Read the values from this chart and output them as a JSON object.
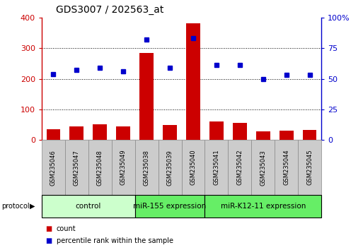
{
  "title": "GDS3007 / 202563_at",
  "samples": [
    "GSM235046",
    "GSM235047",
    "GSM235048",
    "GSM235049",
    "GSM235038",
    "GSM235039",
    "GSM235040",
    "GSM235041",
    "GSM235042",
    "GSM235043",
    "GSM235044",
    "GSM235045"
  ],
  "counts": [
    35,
    45,
    52,
    45,
    285,
    50,
    380,
    60,
    55,
    28,
    30,
    33
  ],
  "percentile_ranks": [
    54,
    57,
    59,
    56,
    82,
    59,
    83,
    61,
    61,
    50,
    53,
    53
  ],
  "groups": [
    {
      "label": "control",
      "start": 0,
      "end": 4,
      "color": "#ccffcc"
    },
    {
      "label": "miR-155 expression",
      "start": 4,
      "end": 7,
      "color": "#66ee66"
    },
    {
      "label": "miR-K12-11 expression",
      "start": 7,
      "end": 12,
      "color": "#66ee66"
    }
  ],
  "bar_color": "#cc0000",
  "dot_color": "#0000cc",
  "left_axis_color": "#cc0000",
  "right_axis_color": "#0000cc",
  "ylim_left": [
    0,
    400
  ],
  "ylim_right": [
    0,
    100
  ],
  "yticks_left": [
    0,
    100,
    200,
    300,
    400
  ],
  "yticks_right": [
    0,
    25,
    50,
    75,
    100
  ],
  "ytick_labels_right": [
    "0",
    "25",
    "50",
    "75",
    "100%"
  ],
  "grid_values": [
    100,
    200,
    300
  ],
  "background_color": "#ffffff",
  "tick_area_color": "#cccccc",
  "figsize": [
    5.13,
    3.54
  ],
  "dpi": 100
}
